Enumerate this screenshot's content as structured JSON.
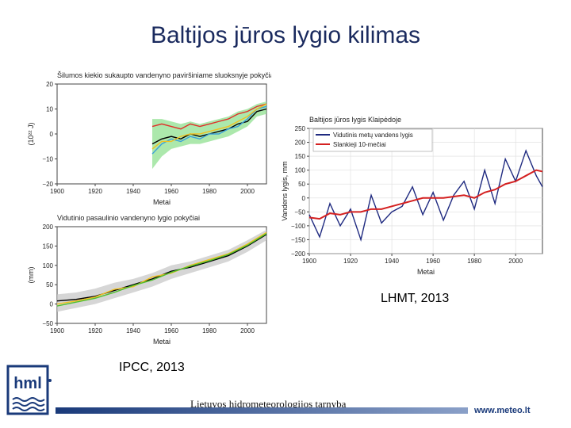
{
  "slide": {
    "title": "Baltijos jūros lygio kilimas",
    "credit_lhmt": "LHMT, 2013",
    "credit_ipcc": "IPCC, 2013",
    "footer_org": "Lietuvos hidrometeorologijos tarnyba",
    "footer_url": "www.meteo.lt",
    "logo_text": "hml"
  },
  "colors": {
    "title": "#1a2a5e",
    "brand_blue": "#1a3a7a",
    "series_blue": "#1f2a80",
    "series_red": "#d42020"
  },
  "chart_data": [
    {
      "id": "ipcc-heat",
      "type": "line",
      "title": "Šilumos kiekio sukaupto vandenyno paviršiniame sluoksnyje pokyčiai",
      "xlabel": "Metai",
      "ylabel": "(10²² J)",
      "xlim": [
        1900,
        2010
      ],
      "ylim": [
        -20,
        20
      ],
      "xticks": [
        1900,
        1920,
        1940,
        1960,
        1980,
        2000
      ],
      "yticks": [
        20,
        10,
        0,
        -10,
        -20
      ],
      "x": [
        1950,
        1955,
        1960,
        1965,
        1970,
        1975,
        1980,
        1985,
        1990,
        1995,
        2000,
        2005,
        2010
      ],
      "series": [
        {
          "values": [
            -4,
            -2,
            -1,
            -2,
            0,
            -1,
            0,
            1,
            2,
            4,
            5,
            9,
            10
          ],
          "color": "#000000"
        },
        {
          "values": [
            3,
            4,
            3,
            2,
            4,
            3,
            4,
            5,
            6,
            8,
            9,
            11,
            12
          ],
          "color": "#e0302a"
        },
        {
          "values": [
            -8,
            -4,
            -2,
            -3,
            -1,
            -2,
            0,
            0,
            2,
            3,
            6,
            10,
            11
          ],
          "color": "#3aa0d8"
        },
        {
          "values": [
            -6,
            -3,
            -3,
            -1,
            0,
            0,
            1,
            2,
            3,
            5,
            7,
            10,
            12
          ],
          "color": "#f0c020"
        }
      ],
      "band": {
        "lower": [
          -14,
          -9,
          -6,
          -5,
          -4,
          -4,
          -3,
          -2,
          -1,
          1,
          3,
          7,
          8
        ],
        "upper": [
          6,
          6,
          5,
          4,
          5,
          4,
          5,
          6,
          7,
          9,
          10,
          12,
          13
        ],
        "color": "#90e090"
      }
    },
    {
      "id": "ipcc-sea",
      "type": "line",
      "title": "Vidutinio pasaulinio vandenyno lygio pokyčiai",
      "xlabel": "Metai",
      "ylabel": "(mm)",
      "xlim": [
        1900,
        2010
      ],
      "ylim": [
        -50,
        200
      ],
      "xticks": [
        1900,
        1920,
        1940,
        1960,
        1980,
        2000
      ],
      "yticks": [
        200,
        150,
        100,
        50,
        0,
        -50
      ],
      "x": [
        1900,
        1910,
        1920,
        1930,
        1940,
        1950,
        1960,
        1970,
        1980,
        1990,
        2000,
        2010
      ],
      "series": [
        {
          "values": [
            8,
            12,
            20,
            35,
            50,
            65,
            85,
            95,
            110,
            125,
            150,
            180
          ],
          "color": "#000000"
        },
        {
          "values": [
            0,
            8,
            18,
            38,
            45,
            70,
            80,
            100,
            115,
            130,
            155,
            185
          ],
          "color": "#f0c020"
        },
        {
          "values": [
            -5,
            5,
            15,
            30,
            48,
            62,
            82,
            98,
            112,
            128,
            152,
            182
          ],
          "color": "#50c030"
        }
      ],
      "band": {
        "lower": [
          -20,
          -10,
          0,
          15,
          30,
          45,
          65,
          80,
          95,
          110,
          135,
          165
        ],
        "upper": [
          25,
          30,
          40,
          55,
          65,
          80,
          100,
          110,
          125,
          140,
          165,
          192
        ],
        "color": "#c8c8c8"
      }
    },
    {
      "id": "lhmt",
      "type": "line",
      "title": "Baltijos jūros lygis Klaipėdoje",
      "xlabel": "Metai",
      "ylabel": "Vandens lygis, mm",
      "xlim": [
        1900,
        2013
      ],
      "ylim": [
        -200,
        250
      ],
      "xticks": [
        1900,
        1920,
        1940,
        1960,
        1980,
        2000
      ],
      "yticks": [
        250,
        200,
        150,
        100,
        50,
        0,
        -50,
        -100,
        -150,
        -200
      ],
      "legend": "top-left",
      "x": [
        1900,
        1905,
        1910,
        1915,
        1920,
        1925,
        1930,
        1935,
        1940,
        1945,
        1950,
        1955,
        1960,
        1965,
        1970,
        1975,
        1980,
        1985,
        1990,
        1995,
        2000,
        2005,
        2010,
        2013
      ],
      "series": [
        {
          "name": "Vidutinis metų vandens lygis",
          "color": "#1f2a80",
          "values": [
            -60,
            -140,
            -20,
            -100,
            -40,
            -150,
            10,
            -90,
            -50,
            -30,
            40,
            -60,
            20,
            -80,
            10,
            60,
            -40,
            100,
            -20,
            140,
            60,
            170,
            80,
            40
          ]
        },
        {
          "name": "Slankieji 10-mečiai",
          "color": "#d42020",
          "values": [
            -70,
            -75,
            -55,
            -60,
            -50,
            -50,
            -40,
            -40,
            -30,
            -20,
            -10,
            0,
            0,
            0,
            5,
            10,
            0,
            20,
            30,
            50,
            60,
            80,
            100,
            95
          ]
        }
      ]
    }
  ]
}
